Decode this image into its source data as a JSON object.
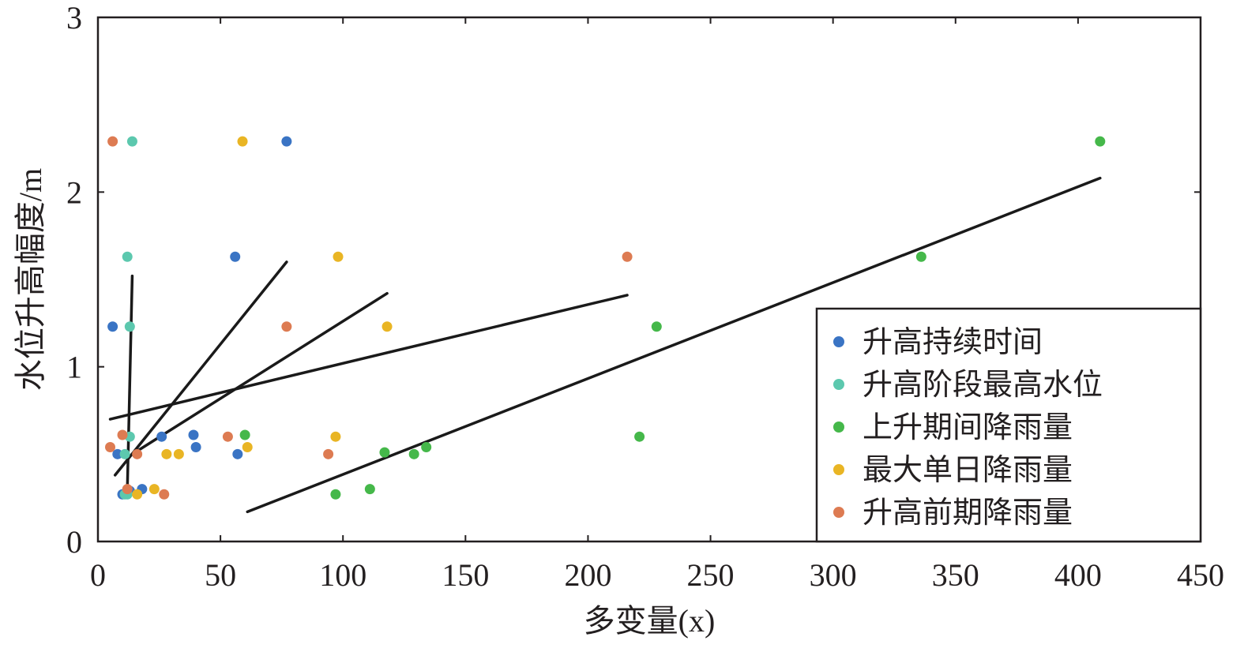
{
  "chart_data": {
    "type": "scatter",
    "xlabel": "多变量(x)",
    "ylabel": "水位升高幅度/m",
    "xlim": [
      0,
      450
    ],
    "ylim": [
      0,
      3
    ],
    "x_ticks": [
      "0",
      "50",
      "100",
      "150",
      "200",
      "250",
      "300",
      "350",
      "400",
      "450"
    ],
    "y_ticks": [
      "0",
      "1",
      "2",
      "3"
    ],
    "grid": false,
    "legend_position": "bottom-right",
    "series": [
      {
        "name": "升高持续时间",
        "color": "#3a74c4",
        "points": [
          [
            77,
            2.29
          ],
          [
            56,
            1.63
          ],
          [
            6,
            1.23
          ],
          [
            39,
            0.61
          ],
          [
            40,
            0.54
          ],
          [
            26,
            0.6
          ],
          [
            57,
            0.5
          ],
          [
            8,
            0.5
          ],
          [
            18,
            0.3
          ],
          [
            10,
            0.27
          ],
          [
            13,
            0.29
          ]
        ],
        "fit": [
          [
            12,
            0.3
          ],
          [
            14,
            1.52
          ]
        ]
      },
      {
        "name": "升高阶段最高水位",
        "color": "#5cc8ae",
        "points": [
          [
            14,
            2.29
          ],
          [
            12,
            1.63
          ],
          [
            13,
            1.23
          ],
          [
            13,
            0.6
          ],
          [
            11,
            0.5
          ],
          [
            12,
            0.27
          ],
          [
            11,
            0.27
          ]
        ],
        "fit": [
          [
            7,
            0.38
          ],
          [
            77,
            1.6
          ]
        ]
      },
      {
        "name": "上升期间降雨量",
        "color": "#45b84a",
        "points": [
          [
            409,
            2.29
          ],
          [
            336,
            1.63
          ],
          [
            228,
            1.23
          ],
          [
            221,
            0.6
          ],
          [
            60,
            0.61
          ],
          [
            134,
            0.54
          ],
          [
            117,
            0.51
          ],
          [
            129,
            0.5
          ],
          [
            111,
            0.3
          ],
          [
            97,
            0.27
          ]
        ],
        "fit": [
          [
            61,
            0.17
          ],
          [
            409,
            2.08
          ]
        ]
      },
      {
        "name": "最大单日降雨量",
        "color": "#e9b524",
        "points": [
          [
            59,
            2.29
          ],
          [
            98,
            1.63
          ],
          [
            118,
            1.23
          ],
          [
            97,
            0.6
          ],
          [
            61,
            0.54
          ],
          [
            28,
            0.5
          ],
          [
            33,
            0.5
          ],
          [
            23,
            0.3
          ],
          [
            16,
            0.27
          ]
        ],
        "fit": [
          [
            14,
            0.5
          ],
          [
            118,
            1.42
          ]
        ]
      },
      {
        "name": "升高前期降雨量",
        "color": "#dd7b52",
        "points": [
          [
            6,
            2.29
          ],
          [
            216,
            1.63
          ],
          [
            77,
            1.23
          ],
          [
            10,
            0.61
          ],
          [
            53,
            0.6
          ],
          [
            5,
            0.54
          ],
          [
            16,
            0.5
          ],
          [
            94,
            0.5
          ],
          [
            12,
            0.3
          ],
          [
            27,
            0.27
          ]
        ],
        "fit": [
          [
            5,
            0.7
          ],
          [
            216,
            1.41
          ]
        ]
      }
    ]
  }
}
